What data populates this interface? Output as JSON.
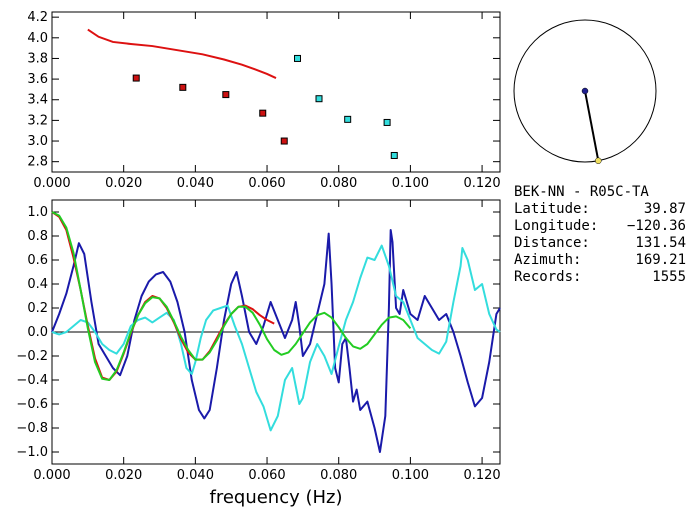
{
  "station_info": {
    "pair": "BEK-NN - R05C-TA",
    "rows": [
      {
        "label": "Latitude:",
        "value": "39.87"
      },
      {
        "label": "Longitude:",
        "value": "-120.36"
      },
      {
        "label": "Distance:",
        "value": "131.54"
      },
      {
        "label": "Azimuth:",
        "value": "169.21"
      },
      {
        "label": "Records:",
        "value": "1555"
      }
    ]
  },
  "chart_data": [
    {
      "type": "scatter",
      "xlim": [
        0.0,
        0.125
      ],
      "ylim": [
        2.7,
        4.25
      ],
      "x_ticks": [
        "0.000",
        "0.020",
        "0.040",
        "0.060",
        "0.080",
        "0.100",
        "0.120"
      ],
      "y_ticks": [
        "2.8",
        "3.0",
        "3.2",
        "3.4",
        "3.6",
        "3.8",
        "4.0",
        "4.2"
      ],
      "colors": {
        "curve": "#dd1111",
        "red_points": "#cc1111",
        "cyan_points": "#33dddd"
      },
      "curve": {
        "x": [
          0.01,
          0.013,
          0.017,
          0.022,
          0.028,
          0.035,
          0.042,
          0.048,
          0.053,
          0.057,
          0.06,
          0.0625
        ],
        "y": [
          4.08,
          4.01,
          3.96,
          3.94,
          3.92,
          3.88,
          3.84,
          3.79,
          3.74,
          3.69,
          3.65,
          3.61
        ]
      },
      "red_points": {
        "x": [
          0.0235,
          0.0365,
          0.0485,
          0.0588,
          0.0648
        ],
        "y": [
          3.61,
          3.52,
          3.45,
          3.27,
          3.0
        ]
      },
      "cyan_points": {
        "x": [
          0.0685,
          0.0745,
          0.0825,
          0.0935,
          0.0955
        ],
        "y": [
          3.8,
          3.41,
          3.21,
          3.18,
          2.86
        ]
      }
    },
    {
      "type": "polar",
      "azimuth": 169.21,
      "colors": {
        "center": "#1f1f8f",
        "endpoint": "#f0e060"
      }
    },
    {
      "type": "line",
      "xlabel": "frequency (Hz)",
      "xlim": [
        0.0,
        0.125
      ],
      "ylim": [
        -1.1,
        1.1
      ],
      "x_ticks": [
        "0.000",
        "0.020",
        "0.040",
        "0.060",
        "0.080",
        "0.100",
        "0.120"
      ],
      "y_ticks": [
        "-1.0",
        "-0.8",
        "-0.6",
        "-0.4",
        "-0.2",
        "0.0",
        "0.2",
        "0.4",
        "0.6",
        "0.8",
        "1.0"
      ],
      "series": [
        {
          "color": "#1a1aaa",
          "x": [
            0.0,
            0.002,
            0.004,
            0.006,
            0.0075,
            0.009,
            0.011,
            0.013,
            0.015,
            0.017,
            0.019,
            0.021,
            0.023,
            0.025,
            0.027,
            0.029,
            0.031,
            0.033,
            0.035,
            0.037,
            0.039,
            0.041,
            0.0425,
            0.044,
            0.046,
            0.048,
            0.05,
            0.0515,
            0.053,
            0.055,
            0.057,
            0.059,
            0.061,
            0.063,
            0.065,
            0.067,
            0.068,
            0.069,
            0.07,
            0.072,
            0.074,
            0.076,
            0.0772,
            0.078,
            0.079,
            0.08,
            0.081,
            0.082,
            0.083,
            0.084,
            0.085,
            0.086,
            0.088,
            0.09,
            0.0915,
            0.093,
            0.094,
            0.0945,
            0.095,
            0.096,
            0.097,
            0.098,
            0.1,
            0.102,
            0.104,
            0.106,
            0.108,
            0.11,
            0.112,
            0.114,
            0.116,
            0.118,
            0.12,
            0.122,
            0.124,
            0.125
          ],
          "y": [
            0.0,
            0.15,
            0.32,
            0.55,
            0.74,
            0.65,
            0.25,
            -0.1,
            -0.2,
            -0.3,
            -0.36,
            -0.2,
            0.1,
            0.3,
            0.42,
            0.48,
            0.5,
            0.42,
            0.25,
            0.0,
            -0.4,
            -0.65,
            -0.72,
            -0.65,
            -0.3,
            0.1,
            0.4,
            0.5,
            0.3,
            0.0,
            -0.1,
            0.05,
            0.25,
            0.1,
            -0.05,
            0.1,
            0.25,
            0.05,
            -0.2,
            -0.1,
            0.15,
            0.4,
            0.82,
            0.4,
            -0.3,
            -0.42,
            -0.1,
            -0.05,
            -0.3,
            -0.58,
            -0.48,
            -0.65,
            -0.58,
            -0.8,
            -1.0,
            -0.7,
            0.2,
            0.85,
            0.75,
            0.2,
            0.15,
            0.35,
            0.15,
            0.1,
            0.3,
            0.2,
            0.1,
            0.15,
            0.0,
            -0.2,
            -0.42,
            -0.62,
            -0.55,
            -0.25,
            0.15,
            0.2
          ]
        },
        {
          "color": "#33dddd",
          "x": [
            0.0,
            0.002,
            0.004,
            0.006,
            0.008,
            0.01,
            0.012,
            0.014,
            0.016,
            0.018,
            0.02,
            0.022,
            0.024,
            0.026,
            0.028,
            0.03,
            0.032,
            0.034,
            0.036,
            0.0375,
            0.039,
            0.04,
            0.0415,
            0.043,
            0.045,
            0.047,
            0.049,
            0.051,
            0.053,
            0.055,
            0.057,
            0.059,
            0.061,
            0.063,
            0.065,
            0.067,
            0.068,
            0.069,
            0.07,
            0.072,
            0.074,
            0.076,
            0.078,
            0.08,
            0.082,
            0.084,
            0.086,
            0.088,
            0.09,
            0.092,
            0.094,
            0.096,
            0.098,
            0.1,
            0.102,
            0.104,
            0.106,
            0.108,
            0.11,
            0.112,
            0.114,
            0.1145,
            0.116,
            0.118,
            0.12,
            0.122,
            0.124,
            0.125
          ],
          "y": [
            0.0,
            -0.02,
            0.0,
            0.05,
            0.1,
            0.08,
            0.0,
            -0.1,
            -0.15,
            -0.18,
            -0.1,
            0.05,
            0.1,
            0.12,
            0.08,
            0.12,
            0.16,
            0.1,
            -0.1,
            -0.3,
            -0.35,
            -0.25,
            -0.05,
            0.1,
            0.18,
            0.2,
            0.22,
            0.05,
            -0.1,
            -0.3,
            -0.5,
            -0.62,
            -0.82,
            -0.7,
            -0.4,
            -0.3,
            -0.45,
            -0.6,
            -0.55,
            -0.25,
            -0.1,
            -0.2,
            -0.35,
            -0.12,
            0.1,
            0.25,
            0.45,
            0.62,
            0.6,
            0.72,
            0.55,
            0.3,
            0.25,
            0.1,
            -0.05,
            -0.1,
            -0.15,
            -0.18,
            -0.08,
            0.25,
            0.55,
            0.7,
            0.6,
            0.35,
            0.4,
            0.15,
            0.02,
            0.0
          ]
        },
        {
          "color": "#dd1111",
          "x": [
            0.0,
            0.002,
            0.004,
            0.006,
            0.008,
            0.01,
            0.012,
            0.014,
            0.016,
            0.018,
            0.02,
            0.022,
            0.024,
            0.026,
            0.028,
            0.03,
            0.032,
            0.034,
            0.036,
            0.038,
            0.04,
            0.042,
            0.044,
            0.046,
            0.048,
            0.05,
            0.052,
            0.054,
            0.056,
            0.058,
            0.06,
            0.062
          ],
          "y": [
            1.0,
            0.96,
            0.85,
            0.62,
            0.35,
            0.05,
            -0.22,
            -0.38,
            -0.4,
            -0.33,
            -0.18,
            -0.01,
            0.14,
            0.25,
            0.3,
            0.28,
            0.2,
            0.08,
            -0.06,
            -0.17,
            -0.23,
            -0.23,
            -0.16,
            -0.05,
            0.06,
            0.15,
            0.21,
            0.22,
            0.19,
            0.14,
            0.1,
            0.07
          ]
        },
        {
          "color": "#22cc22",
          "x": [
            0.0,
            0.002,
            0.004,
            0.006,
            0.008,
            0.01,
            0.012,
            0.014,
            0.016,
            0.018,
            0.02,
            0.022,
            0.024,
            0.026,
            0.028,
            0.03,
            0.032,
            0.034,
            0.036,
            0.038,
            0.04,
            0.042,
            0.044,
            0.046,
            0.048,
            0.05,
            0.052,
            0.054,
            0.056,
            0.058,
            0.06,
            0.062,
            0.064,
            0.066,
            0.068,
            0.07,
            0.072,
            0.074,
            0.076,
            0.078,
            0.08,
            0.082,
            0.084,
            0.086,
            0.088,
            0.09,
            0.092,
            0.094,
            0.096,
            0.098,
            0.1
          ],
          "y": [
            1.0,
            0.97,
            0.87,
            0.66,
            0.35,
            0.03,
            -0.25,
            -0.39,
            -0.4,
            -0.32,
            -0.17,
            0.0,
            0.14,
            0.24,
            0.29,
            0.28,
            0.21,
            0.09,
            -0.04,
            -0.15,
            -0.23,
            -0.23,
            -0.17,
            -0.07,
            0.05,
            0.15,
            0.21,
            0.21,
            0.16,
            0.06,
            -0.06,
            -0.15,
            -0.19,
            -0.17,
            -0.1,
            -0.01,
            0.08,
            0.14,
            0.16,
            0.12,
            0.04,
            -0.05,
            -0.12,
            -0.14,
            -0.1,
            -0.02,
            0.06,
            0.12,
            0.13,
            0.1,
            0.03
          ]
        }
      ]
    }
  ]
}
